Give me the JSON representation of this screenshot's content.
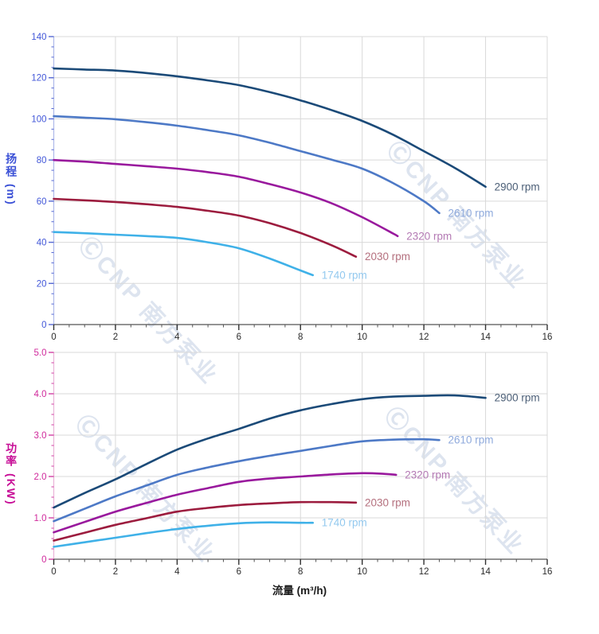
{
  "watermark": {
    "text": "ⒸCNP 南方泵业"
  },
  "axes": {
    "head_title_cjk": "扬程",
    "head_title_unit": "(m)",
    "power_title_cjk": "功率",
    "power_title_unit": "(KW)",
    "flow_title": "流量 (m³/h)"
  },
  "chart_data": [
    {
      "type": "line",
      "name": "head-vs-flow",
      "title": "",
      "xlabel": "流量 (m³/h)",
      "ylabel": "扬程 (m)",
      "xlim": [
        0,
        16
      ],
      "ylim": [
        0,
        140
      ],
      "grid": true,
      "legend_position": "curve-end-labels",
      "x_ticks": [
        0,
        2,
        4,
        6,
        8,
        10,
        12,
        14,
        16
      ],
      "x_minor_step": 0.5,
      "y_ticks": [
        0,
        20,
        40,
        60,
        80,
        100,
        120,
        140
      ],
      "y_tick_labels": [
        "0",
        "20",
        "40",
        "60",
        "80",
        "100",
        "120",
        "140"
      ],
      "y_minor_step": 5,
      "series": [
        {
          "name": "2900 rpm",
          "color": "#1b4a78",
          "label_color": "#4c5f77",
          "points": [
            [
              0,
              124.5
            ],
            [
              1,
              124
            ],
            [
              2,
              123.5
            ],
            [
              3,
              122.3
            ],
            [
              4,
              120.7
            ],
            [
              5,
              118.7
            ],
            [
              6,
              116.4
            ],
            [
              7,
              113
            ],
            [
              8,
              109
            ],
            [
              9,
              104.3
            ],
            [
              10,
              99
            ],
            [
              11,
              92.3
            ],
            [
              12,
              84.3
            ],
            [
              13,
              76.2
            ],
            [
              14,
              67
            ]
          ]
        },
        {
          "name": "2610 rpm",
          "color": "#4d79c6",
          "label_color": "#8faadc",
          "points": [
            [
              0,
              101.3
            ],
            [
              1,
              100.6
            ],
            [
              2,
              99.8
            ],
            [
              3,
              98.4
            ],
            [
              4,
              96.7
            ],
            [
              5,
              94.5
            ],
            [
              6,
              92
            ],
            [
              7,
              88.4
            ],
            [
              8,
              84.3
            ],
            [
              9,
              80.2
            ],
            [
              10,
              75.8
            ],
            [
              11,
              68.8
            ],
            [
              12,
              60
            ],
            [
              12.5,
              54.2
            ]
          ]
        },
        {
          "name": "2320 rpm",
          "color": "#99199d",
          "label_color": "#b47ab4",
          "points": [
            [
              0,
              80
            ],
            [
              1,
              79.2
            ],
            [
              2,
              78.1
            ],
            [
              3,
              77
            ],
            [
              4,
              75.8
            ],
            [
              5,
              74.1
            ],
            [
              6,
              71.9
            ],
            [
              7,
              68.3
            ],
            [
              8,
              64.2
            ],
            [
              9,
              59
            ],
            [
              10,
              52.2
            ],
            [
              11,
              44.3
            ],
            [
              11.15,
              43
            ]
          ]
        },
        {
          "name": "2030 rpm",
          "color": "#9c1c3e",
          "label_color": "#b4707e",
          "points": [
            [
              0,
              61.1
            ],
            [
              1,
              60.4
            ],
            [
              2,
              59.6
            ],
            [
              3,
              58.5
            ],
            [
              4,
              57.2
            ],
            [
              5,
              55.3
            ],
            [
              6,
              53
            ],
            [
              7,
              49.3
            ],
            [
              8,
              44.5
            ],
            [
              9,
              38.6
            ],
            [
              9.8,
              33
            ]
          ]
        },
        {
          "name": "1740 rpm",
          "color": "#3fb1e8",
          "label_color": "#93c9ef",
          "points": [
            [
              0,
              45
            ],
            [
              1,
              44.4
            ],
            [
              2,
              43.7
            ],
            [
              3,
              43
            ],
            [
              4,
              42.1
            ],
            [
              5,
              40
            ],
            [
              6,
              37.1
            ],
            [
              7,
              32.1
            ],
            [
              8,
              26.3
            ],
            [
              8.4,
              24
            ]
          ]
        }
      ]
    },
    {
      "type": "line",
      "name": "power-vs-flow",
      "title": "",
      "xlabel": "流量 (m³/h)",
      "ylabel": "功率 (KW)",
      "xlim": [
        0,
        16
      ],
      "ylim": [
        0,
        5
      ],
      "grid": true,
      "legend_position": "curve-end-labels",
      "x_ticks": [
        0,
        2,
        4,
        6,
        8,
        10,
        12,
        14,
        16
      ],
      "x_minor_step": 0.5,
      "y_ticks": [
        0,
        1,
        2,
        3,
        4,
        5
      ],
      "y_tick_labels": [
        "0",
        "1.0",
        "2.0",
        "3.0",
        "4.0",
        "5.0"
      ],
      "y_minor_step": 0.25,
      "series": [
        {
          "name": "2900 rpm",
          "color": "#1b4a78",
          "label_color": "#4c5f77",
          "points": [
            [
              0,
              1.25
            ],
            [
              1,
              1.6
            ],
            [
              2,
              1.93
            ],
            [
              3,
              2.3
            ],
            [
              4,
              2.65
            ],
            [
              5,
              2.92
            ],
            [
              6,
              3.15
            ],
            [
              7,
              3.4
            ],
            [
              8,
              3.6
            ],
            [
              9,
              3.75
            ],
            [
              10,
              3.87
            ],
            [
              11,
              3.93
            ],
            [
              12,
              3.95
            ],
            [
              13,
              3.96
            ],
            [
              14,
              3.9
            ]
          ]
        },
        {
          "name": "2610 rpm",
          "color": "#4d79c6",
          "label_color": "#8faadc",
          "points": [
            [
              0,
              0.92
            ],
            [
              1,
              1.22
            ],
            [
              2,
              1.52
            ],
            [
              3,
              1.78
            ],
            [
              4,
              2.04
            ],
            [
              5,
              2.22
            ],
            [
              6,
              2.37
            ],
            [
              7,
              2.5
            ],
            [
              8,
              2.62
            ],
            [
              9,
              2.74
            ],
            [
              10,
              2.85
            ],
            [
              11,
              2.89
            ],
            [
              12,
              2.9
            ],
            [
              12.5,
              2.88
            ]
          ]
        },
        {
          "name": "2320 rpm",
          "color": "#99199d",
          "label_color": "#b47ab4",
          "points": [
            [
              0,
              0.65
            ],
            [
              1,
              0.9
            ],
            [
              2,
              1.15
            ],
            [
              3,
              1.36
            ],
            [
              4,
              1.56
            ],
            [
              5,
              1.72
            ],
            [
              6,
              1.87
            ],
            [
              7,
              1.95
            ],
            [
              8,
              2.0
            ],
            [
              9,
              2.05
            ],
            [
              10,
              2.08
            ],
            [
              10.6,
              2.07
            ],
            [
              11.1,
              2.04
            ]
          ]
        },
        {
          "name": "2030 rpm",
          "color": "#9c1c3e",
          "label_color": "#b4707e",
          "points": [
            [
              0,
              0.45
            ],
            [
              1,
              0.64
            ],
            [
              2,
              0.83
            ],
            [
              3,
              0.99
            ],
            [
              4,
              1.15
            ],
            [
              5,
              1.24
            ],
            [
              6,
              1.31
            ],
            [
              7,
              1.35
            ],
            [
              8,
              1.38
            ],
            [
              9,
              1.38
            ],
            [
              9.8,
              1.37
            ]
          ]
        },
        {
          "name": "1740 rpm",
          "color": "#3fb1e8",
          "label_color": "#93c9ef",
          "points": [
            [
              0,
              0.3
            ],
            [
              1,
              0.41
            ],
            [
              2,
              0.52
            ],
            [
              3,
              0.63
            ],
            [
              4,
              0.73
            ],
            [
              5,
              0.81
            ],
            [
              6,
              0.87
            ],
            [
              7,
              0.89
            ],
            [
              8,
              0.88
            ],
            [
              8.4,
              0.88
            ]
          ]
        }
      ]
    }
  ]
}
